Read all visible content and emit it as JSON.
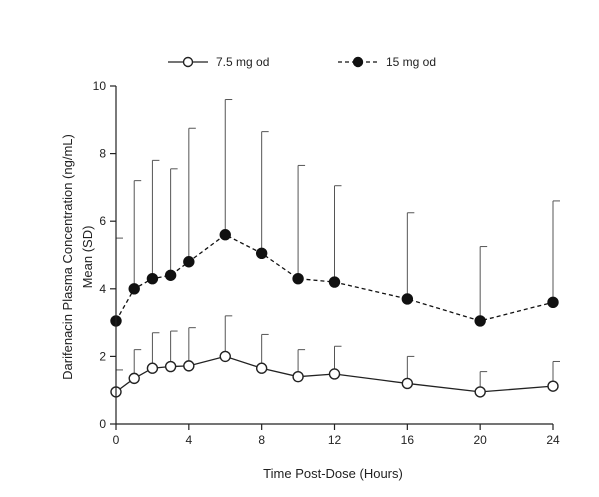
{
  "chart_data": {
    "type": "line",
    "title": "",
    "xlabel": "Time Post-Dose (Hours)",
    "ylabel_line1": "Darifenacin Plasma Concentration (ng/mL)",
    "ylabel_line2": "Mean (SD)",
    "xlim": [
      0,
      24
    ],
    "ylim": [
      0,
      10
    ],
    "xticks": [
      0,
      4,
      8,
      12,
      16,
      20,
      24
    ],
    "yticks": [
      0,
      2,
      4,
      6,
      8,
      10
    ],
    "grid": false,
    "legend_position": "top",
    "series": [
      {
        "name": "7.5 mg od",
        "marker": "open-circle",
        "line_style": "solid",
        "color": "#222222",
        "x": [
          0,
          1,
          2,
          3,
          4,
          6,
          8,
          10,
          12,
          16,
          20,
          24
        ],
        "y": [
          0.95,
          1.35,
          1.65,
          1.7,
          1.72,
          2.0,
          1.65,
          1.4,
          1.48,
          1.2,
          0.95,
          1.12
        ],
        "sd_upper": [
          1.6,
          2.2,
          2.7,
          2.75,
          2.85,
          3.2,
          2.65,
          2.2,
          2.3,
          2.0,
          1.55,
          1.85
        ]
      },
      {
        "name": "15 mg od",
        "marker": "filled-circle",
        "line_style": "dashed",
        "color": "#111111",
        "x": [
          0,
          1,
          2,
          3,
          4,
          6,
          8,
          10,
          12,
          16,
          20,
          24
        ],
        "y": [
          3.05,
          4.0,
          4.3,
          4.4,
          4.8,
          5.6,
          5.05,
          4.3,
          4.2,
          3.7,
          3.05,
          3.6
        ],
        "sd_upper": [
          5.5,
          7.2,
          7.8,
          7.55,
          8.75,
          9.6,
          8.65,
          7.65,
          7.05,
          6.25,
          5.25,
          6.6
        ]
      }
    ]
  }
}
